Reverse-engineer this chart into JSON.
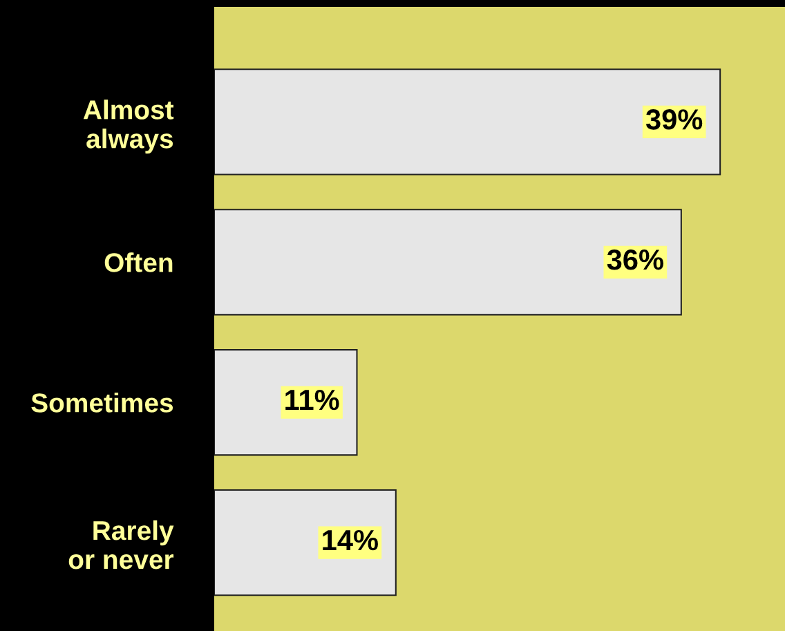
{
  "chart_data": {
    "type": "bar",
    "orientation": "horizontal",
    "categories": [
      "Almost\nalways",
      "Often",
      "Sometimes",
      "Rarely\nor never"
    ],
    "values": [
      39,
      36,
      11,
      14
    ],
    "value_labels": [
      "39%",
      "36%",
      "11%",
      "14%"
    ],
    "color": "#e6e6e6",
    "xlim": [
      0,
      44
    ],
    "tick_labels": "y",
    "grid": false,
    "legend": false
  }
}
